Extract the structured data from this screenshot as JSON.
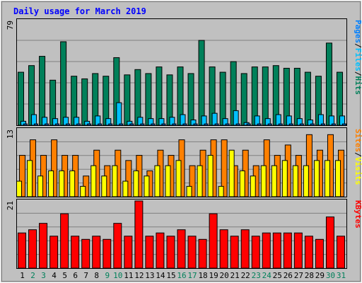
{
  "chart_data": [
    {
      "type": "bar",
      "title": "Daily usage for March 2019",
      "panel": "top",
      "ymax_label": "79",
      "ylim": [
        0,
        79
      ],
      "right_labels": [
        "Pages",
        "/",
        "Files",
        "/",
        "Hits"
      ],
      "series": [
        {
          "name": "Hits",
          "color": "#00805a",
          "values": [
            40,
            45,
            52,
            34,
            63,
            37,
            35,
            39,
            37,
            51,
            38,
            42,
            39,
            44,
            38,
            44,
            39,
            64,
            44,
            40,
            48,
            39,
            44,
            44,
            45,
            43,
            43,
            40,
            37,
            62,
            40
          ]
        },
        {
          "name": "Files",
          "color": "#00c0ff",
          "values": [
            3,
            8,
            6,
            5,
            6,
            6,
            3,
            7,
            5,
            17,
            3,
            6,
            5,
            5,
            6,
            8,
            4,
            7,
            9,
            5,
            11,
            2,
            7,
            5,
            8,
            7,
            5,
            4,
            8,
            7,
            7
          ]
        },
        {
          "name": "Pages",
          "color": "#0080ff",
          "values": [
            1,
            1,
            1,
            1,
            1,
            1,
            1,
            1,
            1,
            1,
            1,
            1,
            1,
            1,
            1,
            1,
            1,
            1,
            1,
            1,
            1,
            1,
            1,
            1,
            1,
            1,
            1,
            1,
            1,
            1,
            1
          ]
        }
      ]
    },
    {
      "type": "bar",
      "panel": "middle",
      "ymax_label": "13",
      "ylim": [
        0,
        13
      ],
      "right_labels": [
        "Sites",
        "/",
        "Visits"
      ],
      "series": [
        {
          "name": "Sites",
          "color": "#ff8000",
          "values": [
            8,
            11,
            8,
            11,
            8,
            8,
            4,
            9,
            6,
            9,
            7,
            8,
            5,
            9,
            8,
            11,
            6,
            9,
            11,
            11,
            6,
            9,
            6,
            11,
            8,
            10,
            8,
            12,
            9,
            12,
            9
          ]
        },
        {
          "name": "Visits",
          "color": "#ffff00",
          "values": [
            3,
            7,
            4,
            5,
            5,
            5,
            2,
            6,
            4,
            6,
            3,
            5,
            4,
            6,
            6,
            7,
            2,
            6,
            8,
            2,
            9,
            5,
            4,
            6,
            6,
            7,
            6,
            6,
            7,
            7,
            7
          ]
        }
      ]
    },
    {
      "type": "bar",
      "panel": "bottom",
      "ymax_label": "21",
      "ylim": [
        0,
        21
      ],
      "right_labels": [
        "KBytes"
      ],
      "series": [
        {
          "name": "KBytes",
          "color": "#ff0000",
          "values": [
            11,
            12,
            14,
            10,
            17,
            10,
            9,
            10,
            9,
            14,
            10,
            21,
            10,
            11,
            10,
            12,
            10,
            9,
            17,
            12,
            10,
            12,
            10,
            11,
            11,
            11,
            11,
            10,
            9,
            16,
            10
          ]
        }
      ]
    }
  ],
  "days": {
    "labels": [
      "1",
      "2",
      "3",
      "4",
      "5",
      "6",
      "7",
      "8",
      "9",
      "10",
      "11",
      "12",
      "13",
      "14",
      "15",
      "16",
      "17",
      "18",
      "19",
      "20",
      "21",
      "22",
      "23",
      "24",
      "25",
      "26",
      "27",
      "28",
      "29",
      "30",
      "31"
    ],
    "weekend_days": [
      2,
      3,
      9,
      10,
      16,
      17,
      23,
      24,
      30,
      31
    ]
  },
  "colors": {
    "background": "#c0c0c0",
    "plot_bg": "#c0c0c0",
    "grid": "#808080",
    "title": "#0000ff",
    "weekday": "#000000",
    "weekend": "#00805a",
    "label_pages": "#0080ff",
    "label_files": "#00c0ff",
    "label_hits": "#00805a",
    "label_sites": "#ff8000",
    "label_visits": "#ffff00",
    "label_kbytes": "#ff0000",
    "label_slash": "#000000"
  }
}
